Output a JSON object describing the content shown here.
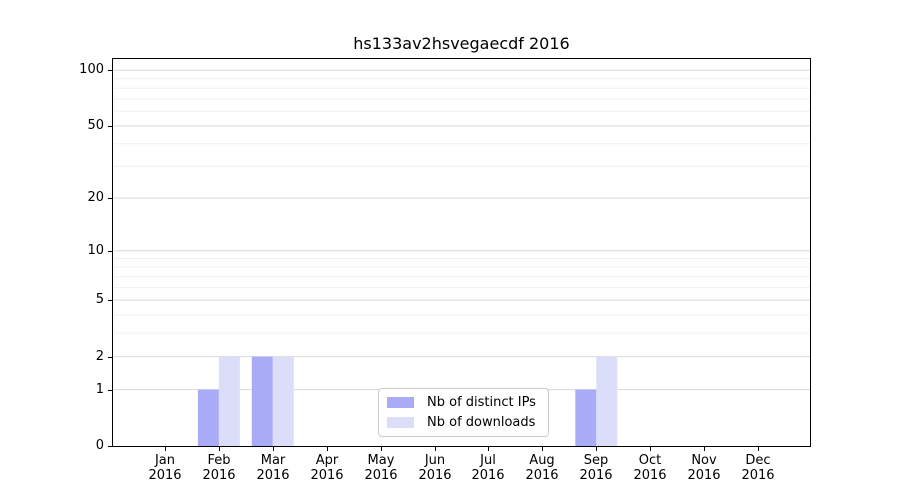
{
  "chart_data": {
    "type": "bar",
    "title": "hs133av2hsvegaecdf 2016",
    "x_tick_months": [
      "Jan",
      "Feb",
      "Mar",
      "Apr",
      "May",
      "Jun",
      "Jul",
      "Aug",
      "Sep",
      "Oct",
      "Nov",
      "Dec"
    ],
    "x_tick_year": "2016",
    "series": [
      {
        "name": "Nb of distinct IPs",
        "color": "#a9abf6",
        "values": [
          0,
          1,
          2,
          0,
          0,
          0,
          0,
          0,
          1,
          0,
          0,
          0
        ]
      },
      {
        "name": "Nb of downloads",
        "color": "#dcdef9",
        "values": [
          0,
          2,
          2,
          0,
          0,
          0,
          0,
          0,
          2,
          0,
          0,
          0
        ]
      }
    ],
    "y_scale": "log1p",
    "ylim": [
      0,
      115
    ],
    "y_major_ticks": [
      0,
      1,
      2,
      5,
      10,
      20,
      50,
      100
    ],
    "y_minor_gridlines": [
      3,
      4,
      6,
      7,
      8,
      9,
      30,
      40,
      60,
      70,
      80,
      90
    ],
    "grid": true,
    "legend_position": "inside lower-center",
    "colors": {
      "grid_major": "#d9d9d9",
      "grid_minor": "#f0f0f0",
      "spine": "#000000"
    }
  }
}
